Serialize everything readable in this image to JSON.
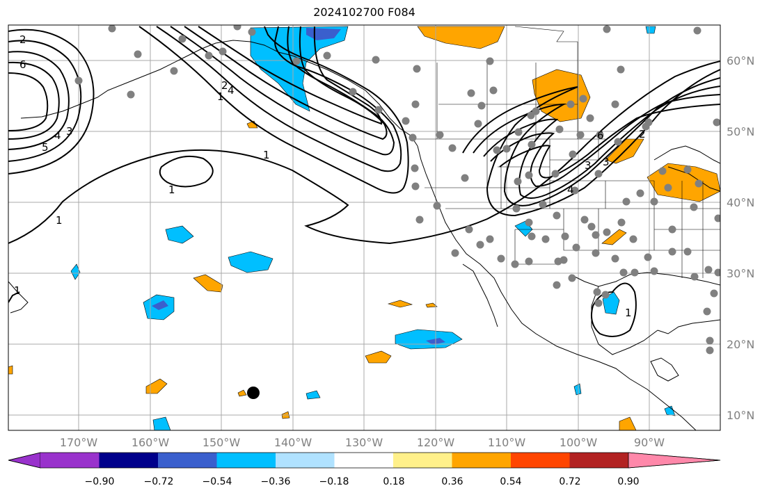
{
  "title": "2024102700 F084",
  "lat_labels": [
    "60°N",
    "50°N",
    "40°N",
    "30°N",
    "20°N",
    "10°N"
  ],
  "lon_labels": [
    "170°W",
    "160°W",
    "150°W",
    "140°W",
    "130°W",
    "120°W",
    "110°W",
    "100°W",
    "90°W"
  ],
  "colorbar": {
    "ticks": [
      "−0.90",
      "−0.72",
      "−0.54",
      "−0.36",
      "−0.18",
      "0.18",
      "0.36",
      "0.54",
      "0.72",
      "0.90"
    ],
    "colors": [
      "#9932cc",
      "#00008b",
      "#3a5fcd",
      "#00bfff",
      "#b0e2ff",
      "#ffffff",
      "#fff08a",
      "#ffa500",
      "#ff4500",
      "#b22222",
      "#ff88aa"
    ]
  },
  "contour_labels": [
    "2",
    "6",
    "3",
    "4",
    "5",
    "1",
    "1",
    "1",
    "1",
    "2",
    "4",
    "3",
    "4",
    "2",
    "3",
    "6",
    "1",
    "1"
  ],
  "colors": {
    "orange": "#ffa500",
    "cyan": "#00bfff",
    "blue": "#3a5fcd",
    "station": "#808080"
  }
}
